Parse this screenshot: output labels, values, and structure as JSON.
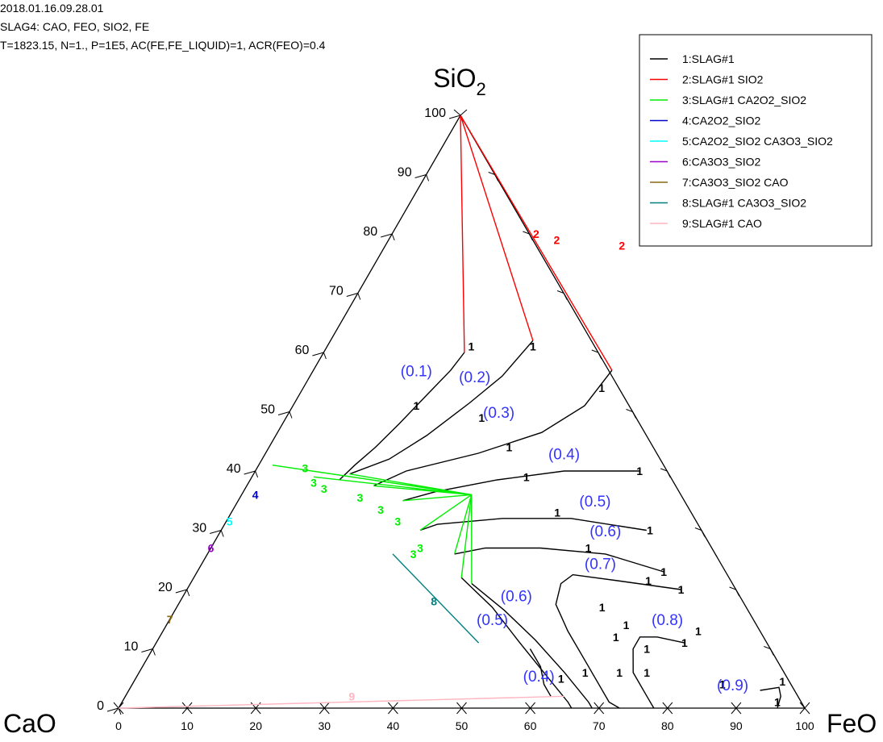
{
  "header": {
    "timestamp": "2018.01.16.09.28.01",
    "system": "SLAG4: CAO, FEO, SIO2, FE",
    "conditions": "T=1823.15, N=1., P=1E5, AC(FE,FE_LIQUID)=1, ACR(FEO)=0.4"
  },
  "colors": {
    "1": "#000000",
    "2": "#ff0000",
    "3": "#00ee00",
    "4": "#0000cc",
    "5": "#00ffff",
    "6": "#9900cc",
    "7": "#8b6914",
    "8": "#008080",
    "9": "#ffb6c1",
    "iso": "#3333ff"
  },
  "chart_data": {
    "type": "ternary",
    "corners": {
      "top": {
        "base": "SiO",
        "sub": "2"
      },
      "left": "CaO",
      "right": "FeO"
    },
    "ticks": [
      "0",
      "10",
      "20",
      "30",
      "40",
      "50",
      "60",
      "70",
      "80",
      "90",
      "100"
    ],
    "legend": [
      {
        "id": "1",
        "text": "1:SLAG#1"
      },
      {
        "id": "2",
        "text": "2:SLAG#1 SIO2"
      },
      {
        "id": "3",
        "text": "3:SLAG#1 CA2O2_SIO2"
      },
      {
        "id": "4",
        "text": "4:CA2O2_SIO2"
      },
      {
        "id": "5",
        "text": "5:CA2O2_SIO2 CA3O3_SIO2"
      },
      {
        "id": "6",
        "text": "6:CA3O3_SIO2"
      },
      {
        "id": "7",
        "text": "7:CA3O3_SIO2 CAO"
      },
      {
        "id": "8",
        "text": "8:SLAG#1 CA3O3_SIO2"
      },
      {
        "id": "9",
        "text": "9:SLAG#1 CAO"
      }
    ],
    "lines": [
      {
        "series": "2",
        "points": [
          [
            0,
            100
          ],
          [
            20.5,
            60
          ]
        ]
      },
      {
        "series": "2",
        "points": [
          [
            0,
            100
          ],
          [
            29.5,
            62
          ]
        ]
      },
      {
        "series": "2",
        "points": [
          [
            0,
            100
          ],
          [
            43.5,
            57
          ]
        ]
      },
      {
        "series": "1",
        "points": [
          [
            20.5,
            60
          ],
          [
            20,
            57
          ],
          [
            18.5,
            52.5
          ],
          [
            17,
            48
          ],
          [
            15.5,
            44
          ],
          [
            14,
            41
          ],
          [
            13,
            38.5
          ]
        ]
      },
      {
        "series": "1",
        "points": [
          [
            29.5,
            62
          ],
          [
            28,
            56
          ],
          [
            25.5,
            51.5
          ],
          [
            22,
            46
          ],
          [
            18.5,
            42
          ],
          [
            14,
            39.5
          ]
        ]
      },
      {
        "series": "1",
        "points": [
          [
            43.5,
            57
          ],
          [
            42.5,
            51
          ],
          [
            38.5,
            46.5
          ],
          [
            31,
            43
          ],
          [
            22,
            40
          ],
          [
            18.5,
            37.5
          ]
        ]
      },
      {
        "series": "1",
        "points": [
          [
            56,
            40
          ],
          [
            45,
            40
          ],
          [
            36,
            38.5
          ],
          [
            28,
            36.5
          ],
          [
            24,
            35
          ]
        ]
      },
      {
        "series": "1",
        "points": [
          [
            62,
            30
          ],
          [
            50,
            32
          ],
          [
            40,
            32
          ],
          [
            31,
            31
          ],
          [
            29,
            30
          ]
        ]
      },
      {
        "series": "1",
        "points": [
          [
            68,
            23
          ],
          [
            58,
            26
          ],
          [
            48,
            27
          ],
          [
            40,
            27
          ],
          [
            36,
            26
          ]
        ]
      },
      {
        "series": "1",
        "points": [
          [
            72,
            20
          ],
          [
            62,
            21.5
          ],
          [
            55,
            22.5
          ],
          [
            54,
            21
          ],
          [
            55,
            17.5
          ],
          [
            59,
            13
          ],
          [
            64,
            8
          ],
          [
            71,
            1
          ],
          [
            73,
            0
          ]
        ]
      },
      {
        "series": "1",
        "points": [
          [
            77,
            11
          ],
          [
            72.5,
            12
          ],
          [
            70,
            12
          ],
          [
            70,
            10
          ],
          [
            72,
            6
          ],
          [
            76,
            2
          ],
          [
            78,
            0
          ]
        ]
      },
      {
        "series": "1",
        "points": [
          [
            92,
            3
          ],
          [
            94.5,
            3.5
          ],
          [
            95.5,
            2
          ],
          [
            96,
            0
          ]
        ]
      },
      {
        "series": "1",
        "points": [
          [
            41,
            21
          ],
          [
            48,
            16.5
          ],
          [
            55,
            11.5
          ],
          [
            62,
            6
          ],
          [
            68,
            1
          ],
          [
            69,
            0
          ]
        ]
      },
      {
        "series": "1",
        "points": [
          [
            39,
            22
          ],
          [
            46,
            17
          ],
          [
            53,
            11
          ],
          [
            59,
            6
          ],
          [
            65,
            1
          ],
          [
            66,
            0
          ]
        ]
      },
      {
        "series": "1",
        "points": [
          [
            55,
            10
          ],
          [
            58,
            7
          ],
          [
            60,
            4
          ],
          [
            62,
            2
          ]
        ]
      },
      {
        "series": "3",
        "points": [
          [
            33.5,
            36
          ],
          [
            2,
            41
          ]
        ]
      },
      {
        "series": "3",
        "points": [
          [
            33.5,
            36
          ],
          [
            9,
            39
          ]
        ]
      },
      {
        "series": "3",
        "points": [
          [
            33.5,
            36
          ],
          [
            14,
            39.5
          ]
        ]
      },
      {
        "series": "3",
        "points": [
          [
            33.5,
            36
          ],
          [
            18.5,
            37.5
          ]
        ]
      },
      {
        "series": "3",
        "points": [
          [
            33.5,
            36
          ],
          [
            24,
            35
          ]
        ]
      },
      {
        "series": "3",
        "points": [
          [
            33.5,
            36
          ],
          [
            29,
            30
          ]
        ]
      },
      {
        "series": "3",
        "points": [
          [
            33.5,
            36
          ],
          [
            36,
            26
          ]
        ]
      },
      {
        "series": "3",
        "points": [
          [
            33.5,
            36
          ],
          [
            39,
            22
          ]
        ]
      },
      {
        "series": "3",
        "points": [
          [
            33.5,
            36
          ],
          [
            41,
            21
          ]
        ]
      },
      {
        "series": "8",
        "points": [
          [
            27,
            26
          ],
          [
            47,
            11
          ]
        ]
      },
      {
        "series": "9",
        "points": [
          [
            0,
            0
          ],
          [
            64,
            2
          ]
        ]
      }
    ],
    "iso_labels": [
      {
        "text": "(0.1)",
        "at": [
          15.5,
          56
        ]
      },
      {
        "text": "(0.2)",
        "at": [
          24.5,
          55
        ]
      },
      {
        "text": "(0.3)",
        "at": [
          31,
          49
        ]
      },
      {
        "text": "(0.4)",
        "at": [
          44,
          42
        ]
      },
      {
        "text": "(0.5)",
        "at": [
          52.5,
          34
        ]
      },
      {
        "text": "(0.6)",
        "at": [
          56.5,
          29
        ]
      },
      {
        "text": "(0.7)",
        "at": [
          58.5,
          23.5
        ]
      },
      {
        "text": "(0.6)",
        "at": [
          49,
          18
        ]
      },
      {
        "text": "(0.5)",
        "at": [
          47.5,
          14
        ]
      },
      {
        "text": "(0.8)",
        "at": [
          73,
          14
        ]
      },
      {
        "text": "(0.4)",
        "at": [
          59,
          4.5
        ]
      },
      {
        "text": "(0.9)",
        "at": [
          88,
          3
        ]
      }
    ],
    "markers": [
      {
        "text": "2",
        "series": "2",
        "at": [
          21,
          80
        ]
      },
      {
        "text": "2",
        "series": "2",
        "at": [
          24.5,
          79
        ]
      },
      {
        "text": "2",
        "series": "2",
        "at": [
          34.5,
          78
        ]
      },
      {
        "text": "1",
        "series": "1",
        "at": [
          21,
          61
        ]
      },
      {
        "text": "1",
        "series": "1",
        "at": [
          30,
          61
        ]
      },
      {
        "text": "1",
        "series": "1",
        "at": [
          43.5,
          54
        ]
      },
      {
        "text": "1",
        "series": "1",
        "at": [
          18,
          51
        ]
      },
      {
        "text": "1",
        "series": "1",
        "at": [
          28.5,
          49
        ]
      },
      {
        "text": "1",
        "series": "1",
        "at": [
          35,
          44
        ]
      },
      {
        "text": "1",
        "series": "1",
        "at": [
          40,
          39
        ]
      },
      {
        "text": "1",
        "series": "1",
        "at": [
          56,
          40
        ]
      },
      {
        "text": "1",
        "series": "1",
        "at": [
          47.5,
          33
        ]
      },
      {
        "text": "1",
        "series": "1",
        "at": [
          62.5,
          30
        ]
      },
      {
        "text": "1",
        "series": "1",
        "at": [
          55,
          27
        ]
      },
      {
        "text": "1",
        "series": "1",
        "at": [
          68,
          23
        ]
      },
      {
        "text": "1",
        "series": "1",
        "at": [
          66.5,
          21.5
        ]
      },
      {
        "text": "1",
        "series": "1",
        "at": [
          72,
          20
        ]
      },
      {
        "text": "1",
        "series": "1",
        "at": [
          62,
          17
        ]
      },
      {
        "text": "1",
        "series": "1",
        "at": [
          67,
          14
        ]
      },
      {
        "text": "1",
        "series": "1",
        "at": [
          66.5,
          12
        ]
      },
      {
        "text": "1",
        "series": "1",
        "at": [
          78,
          13
        ]
      },
      {
        "text": "1",
        "series": "1",
        "at": [
          77,
          11
        ]
      },
      {
        "text": "1",
        "series": "1",
        "at": [
          72,
          10
        ]
      },
      {
        "text": "1",
        "series": "1",
        "at": [
          65,
          6
        ]
      },
      {
        "text": "1",
        "series": "1",
        "at": [
          70,
          6
        ]
      },
      {
        "text": "1",
        "series": "1",
        "at": [
          74,
          6
        ]
      },
      {
        "text": "1",
        "series": "1",
        "at": [
          62,
          5
        ]
      },
      {
        "text": "1",
        "series": "1",
        "at": [
          86,
          4
        ]
      },
      {
        "text": "1",
        "series": "1",
        "at": [
          94.5,
          4.5
        ]
      },
      {
        "text": "1",
        "series": "1",
        "at": [
          95.5,
          1
        ]
      },
      {
        "text": "3",
        "series": "3",
        "at": [
          7,
          40.5
        ]
      },
      {
        "text": "3",
        "series": "3",
        "at": [
          9.5,
          38
        ]
      },
      {
        "text": "3",
        "series": "3",
        "at": [
          11.5,
          37
        ]
      },
      {
        "text": "3",
        "series": "3",
        "at": [
          17.5,
          35.5
        ]
      },
      {
        "text": "3",
        "series": "3",
        "at": [
          21.5,
          33.5
        ]
      },
      {
        "text": "3",
        "series": "3",
        "at": [
          25,
          31.5
        ]
      },
      {
        "text": "3",
        "series": "3",
        "at": [
          30.5,
          27
        ]
      },
      {
        "text": "3",
        "series": "3",
        "at": [
          30,
          26
        ]
      },
      {
        "text": "4",
        "series": "4",
        "at": [
          2,
          36
        ]
      },
      {
        "text": "5",
        "series": "5",
        "at": [
          0.5,
          31.5
        ]
      },
      {
        "text": "6",
        "series": "6",
        "at": [
          0,
          27
        ]
      },
      {
        "text": "7",
        "series": "7",
        "at": [
          0,
          15
        ]
      },
      {
        "text": "8",
        "series": "8",
        "at": [
          37,
          18
        ]
      },
      {
        "text": "9",
        "series": "9",
        "at": [
          33,
          2
        ]
      }
    ]
  }
}
